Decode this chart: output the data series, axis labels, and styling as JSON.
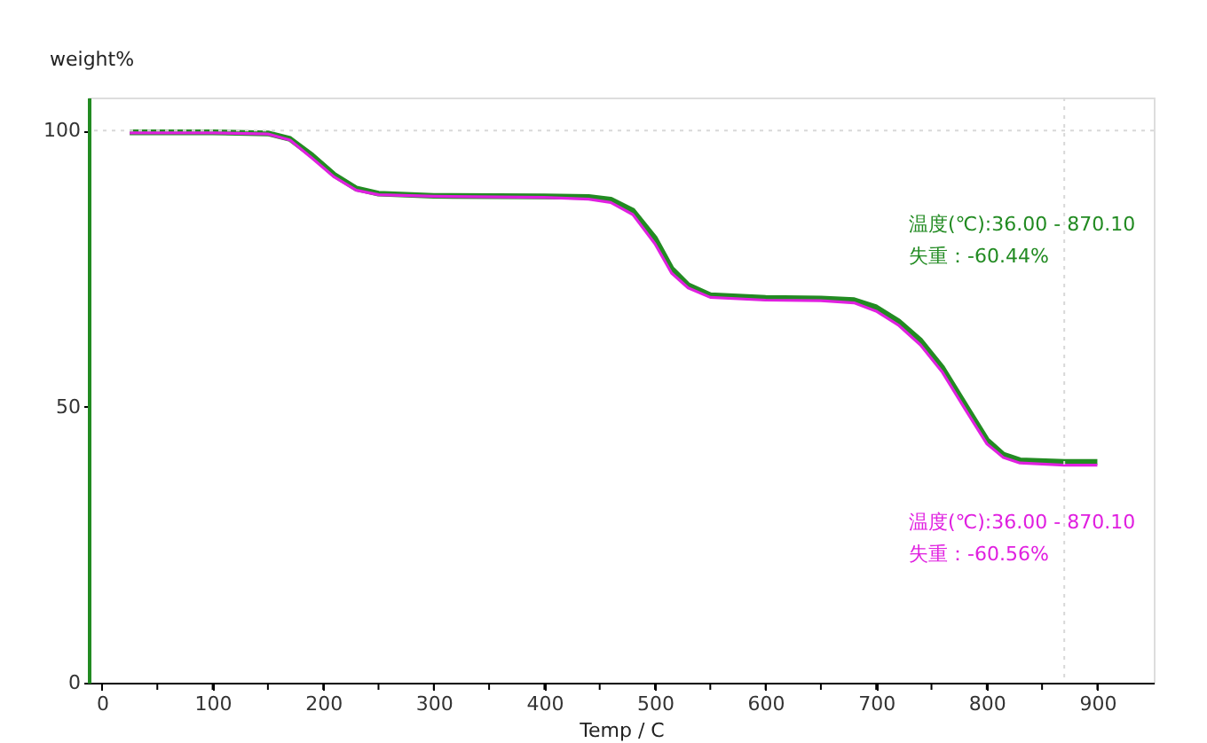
{
  "chart_data": {
    "type": "line",
    "xlabel": "Temp / C",
    "ylabel": "weight%",
    "x": [
      25,
      100,
      150,
      170,
      190,
      210,
      230,
      250,
      300,
      400,
      440,
      460,
      480,
      500,
      515,
      530,
      550,
      600,
      650,
      680,
      700,
      720,
      740,
      760,
      780,
      800,
      815,
      830,
      870,
      900
    ],
    "series": [
      {
        "color": "#228b22",
        "values": [
          99.7,
          99.7,
          99.5,
          98.5,
          95.5,
          92,
          89.5,
          88.6,
          88.2,
          88.1,
          88.0,
          87.5,
          85.5,
          80.5,
          75,
          72,
          70.2,
          69.7,
          69.6,
          69.3,
          68,
          65.5,
          62,
          57,
          50.5,
          44,
          41.3,
          40.3,
          40,
          40
        ]
      },
      {
        "color": "#e020e0",
        "values": [
          99.6,
          99.6,
          99.4,
          98.3,
          95.0,
          91.6,
          89.2,
          88.4,
          88.1,
          87.9,
          87.6,
          87.0,
          84.8,
          79.5,
          74.2,
          71.5,
          69.8,
          69.3,
          69.2,
          68.8,
          67.3,
          64.8,
          61.2,
          56.2,
          49.7,
          43.3,
          40.8,
          39.8,
          39.4,
          39.4
        ]
      }
    ],
    "xlim": [
      -12,
      951
    ],
    "ylim": [
      0,
      106
    ],
    "xticks": [
      0,
      {
        "value": 50,
        "label": null
      },
      100,
      {
        "value": 150,
        "label": null
      },
      200,
      {
        "value": 250,
        "label": null
      },
      300,
      {
        "value": 350,
        "label": null
      },
      400,
      {
        "value": 450,
        "label": null
      },
      500,
      {
        "value": 550,
        "label": null
      },
      600,
      {
        "value": 650,
        "label": null
      },
      700,
      {
        "value": 750,
        "label": null
      },
      800,
      {
        "value": 850,
        "label": null
      },
      900
    ],
    "yticks": [
      0,
      50,
      100
    ],
    "ref_lines": [
      {
        "axis": "y",
        "value": 100,
        "color": "#d8d8d8",
        "line_style": "dotted"
      },
      {
        "axis": "x",
        "value": 870.1,
        "color": "#d8d8d8",
        "line_style": "dotted"
      }
    ],
    "annotations": [
      "温度(℃):36.00 - 870.10",
      "失重：-60.44%",
      "温度(℃):36.00 - 870.10",
      "失重：-60.56%"
    ],
    "grid": false,
    "legend": false,
    "line_style": "solid"
  }
}
